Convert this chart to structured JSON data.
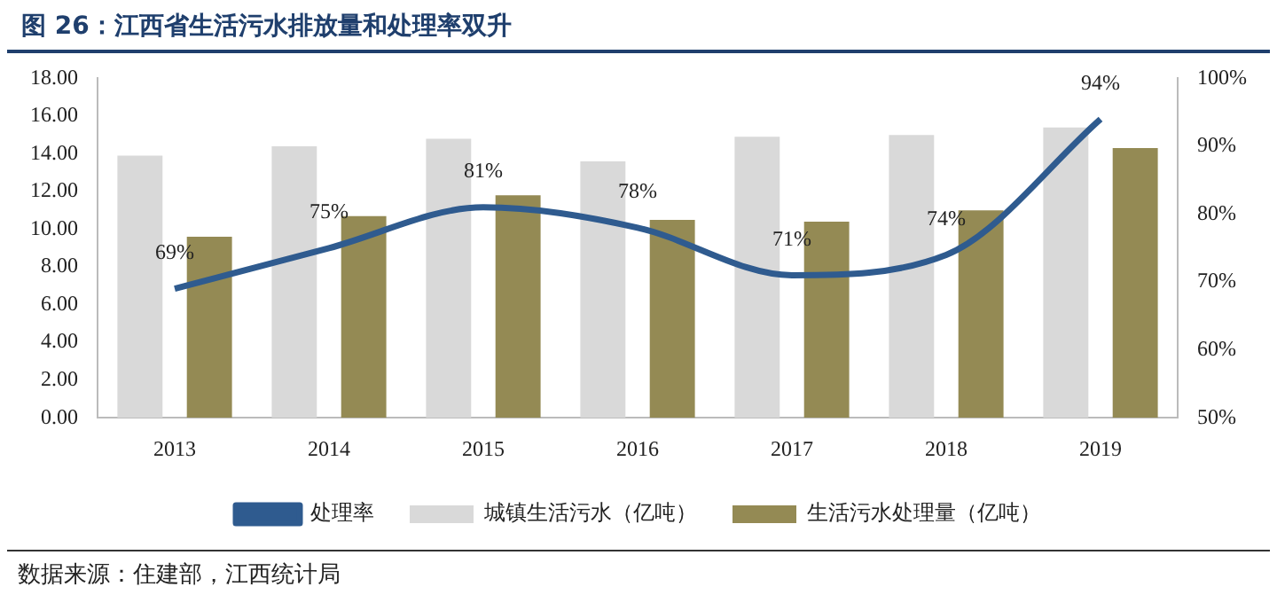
{
  "chart_data": {
    "type": "bar",
    "title": "图 26：江西省生活污水排放量和处理率双升",
    "categories": [
      "2013",
      "2014",
      "2015",
      "2016",
      "2017",
      "2018",
      "2019"
    ],
    "series": [
      {
        "name": "城镇生活污水（亿吨）",
        "color": "#d9d9d9",
        "values": [
          13.9,
          14.4,
          14.8,
          13.6,
          14.9,
          15.0,
          15.4
        ]
      },
      {
        "name": "生活污水处理量（亿吨）",
        "color": "#948a54",
        "values": [
          9.6,
          10.7,
          11.8,
          10.5,
          10.4,
          11.0,
          14.3
        ]
      },
      {
        "name": "处理率",
        "type": "line",
        "axis": "y2",
        "color": "#2f5b8f",
        "values": [
          69,
          75,
          81,
          78,
          71,
          74,
          94
        ],
        "value_labels": [
          "69%",
          "75%",
          "81%",
          "78%",
          "71%",
          "74%",
          "94%"
        ]
      }
    ],
    "ylim": [
      0,
      18
    ],
    "yticks": [
      {
        "value": 0,
        "label": "0.00"
      },
      {
        "value": 2,
        "label": "2.00"
      },
      {
        "value": 4,
        "label": "4.00"
      },
      {
        "value": 6,
        "label": "6.00"
      },
      {
        "value": 8,
        "label": "8.00"
      },
      {
        "value": 10,
        "label": "10.00"
      },
      {
        "value": 12,
        "label": "12.00"
      },
      {
        "value": 14,
        "label": "14.00"
      },
      {
        "value": 16,
        "label": "16.00"
      },
      {
        "value": 18,
        "label": "18.00"
      }
    ],
    "y2lim": [
      50,
      100
    ],
    "y2ticks": [
      {
        "value": 50,
        "label": "50%"
      },
      {
        "value": 60,
        "label": "60%"
      },
      {
        "value": 70,
        "label": "70%"
      },
      {
        "value": 80,
        "label": "80%"
      },
      {
        "value": 90,
        "label": "90%"
      },
      {
        "value": 100,
        "label": "100%"
      }
    ],
    "grid": false,
    "legend": "bottom",
    "annotations": [
      "数据来源：住建部，江西统计局"
    ]
  }
}
